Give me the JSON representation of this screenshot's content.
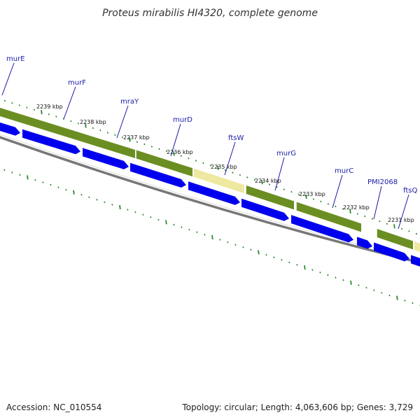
{
  "title": "Proteus mirabilis HI4320, complete genome",
  "accession": "Accession: NC_010554",
  "summary": "Topology: circular; Length: 4,063,606 bp; Genes: 3,729",
  "colors": {
    "cds": "#0000ee",
    "gene_green": "#6b8e23",
    "gene_yellow": "#eee8a0",
    "backbone": "#777777",
    "tick": "#2e8b2e",
    "label": "#1a1aa8"
  },
  "kbp_labels": [
    "2239 kbp",
    "2238 kbp",
    "2237 kbp",
    "2236 kbp",
    "2235 kbp",
    "2234 kbp",
    "2233 kbp",
    "2232 kbp",
    "2231 kbp"
  ],
  "gene_labels": [
    "murE",
    "murF",
    "mraY",
    "murD",
    "ftsW",
    "murG",
    "murC",
    "PMI2068",
    "ftsQ"
  ]
}
